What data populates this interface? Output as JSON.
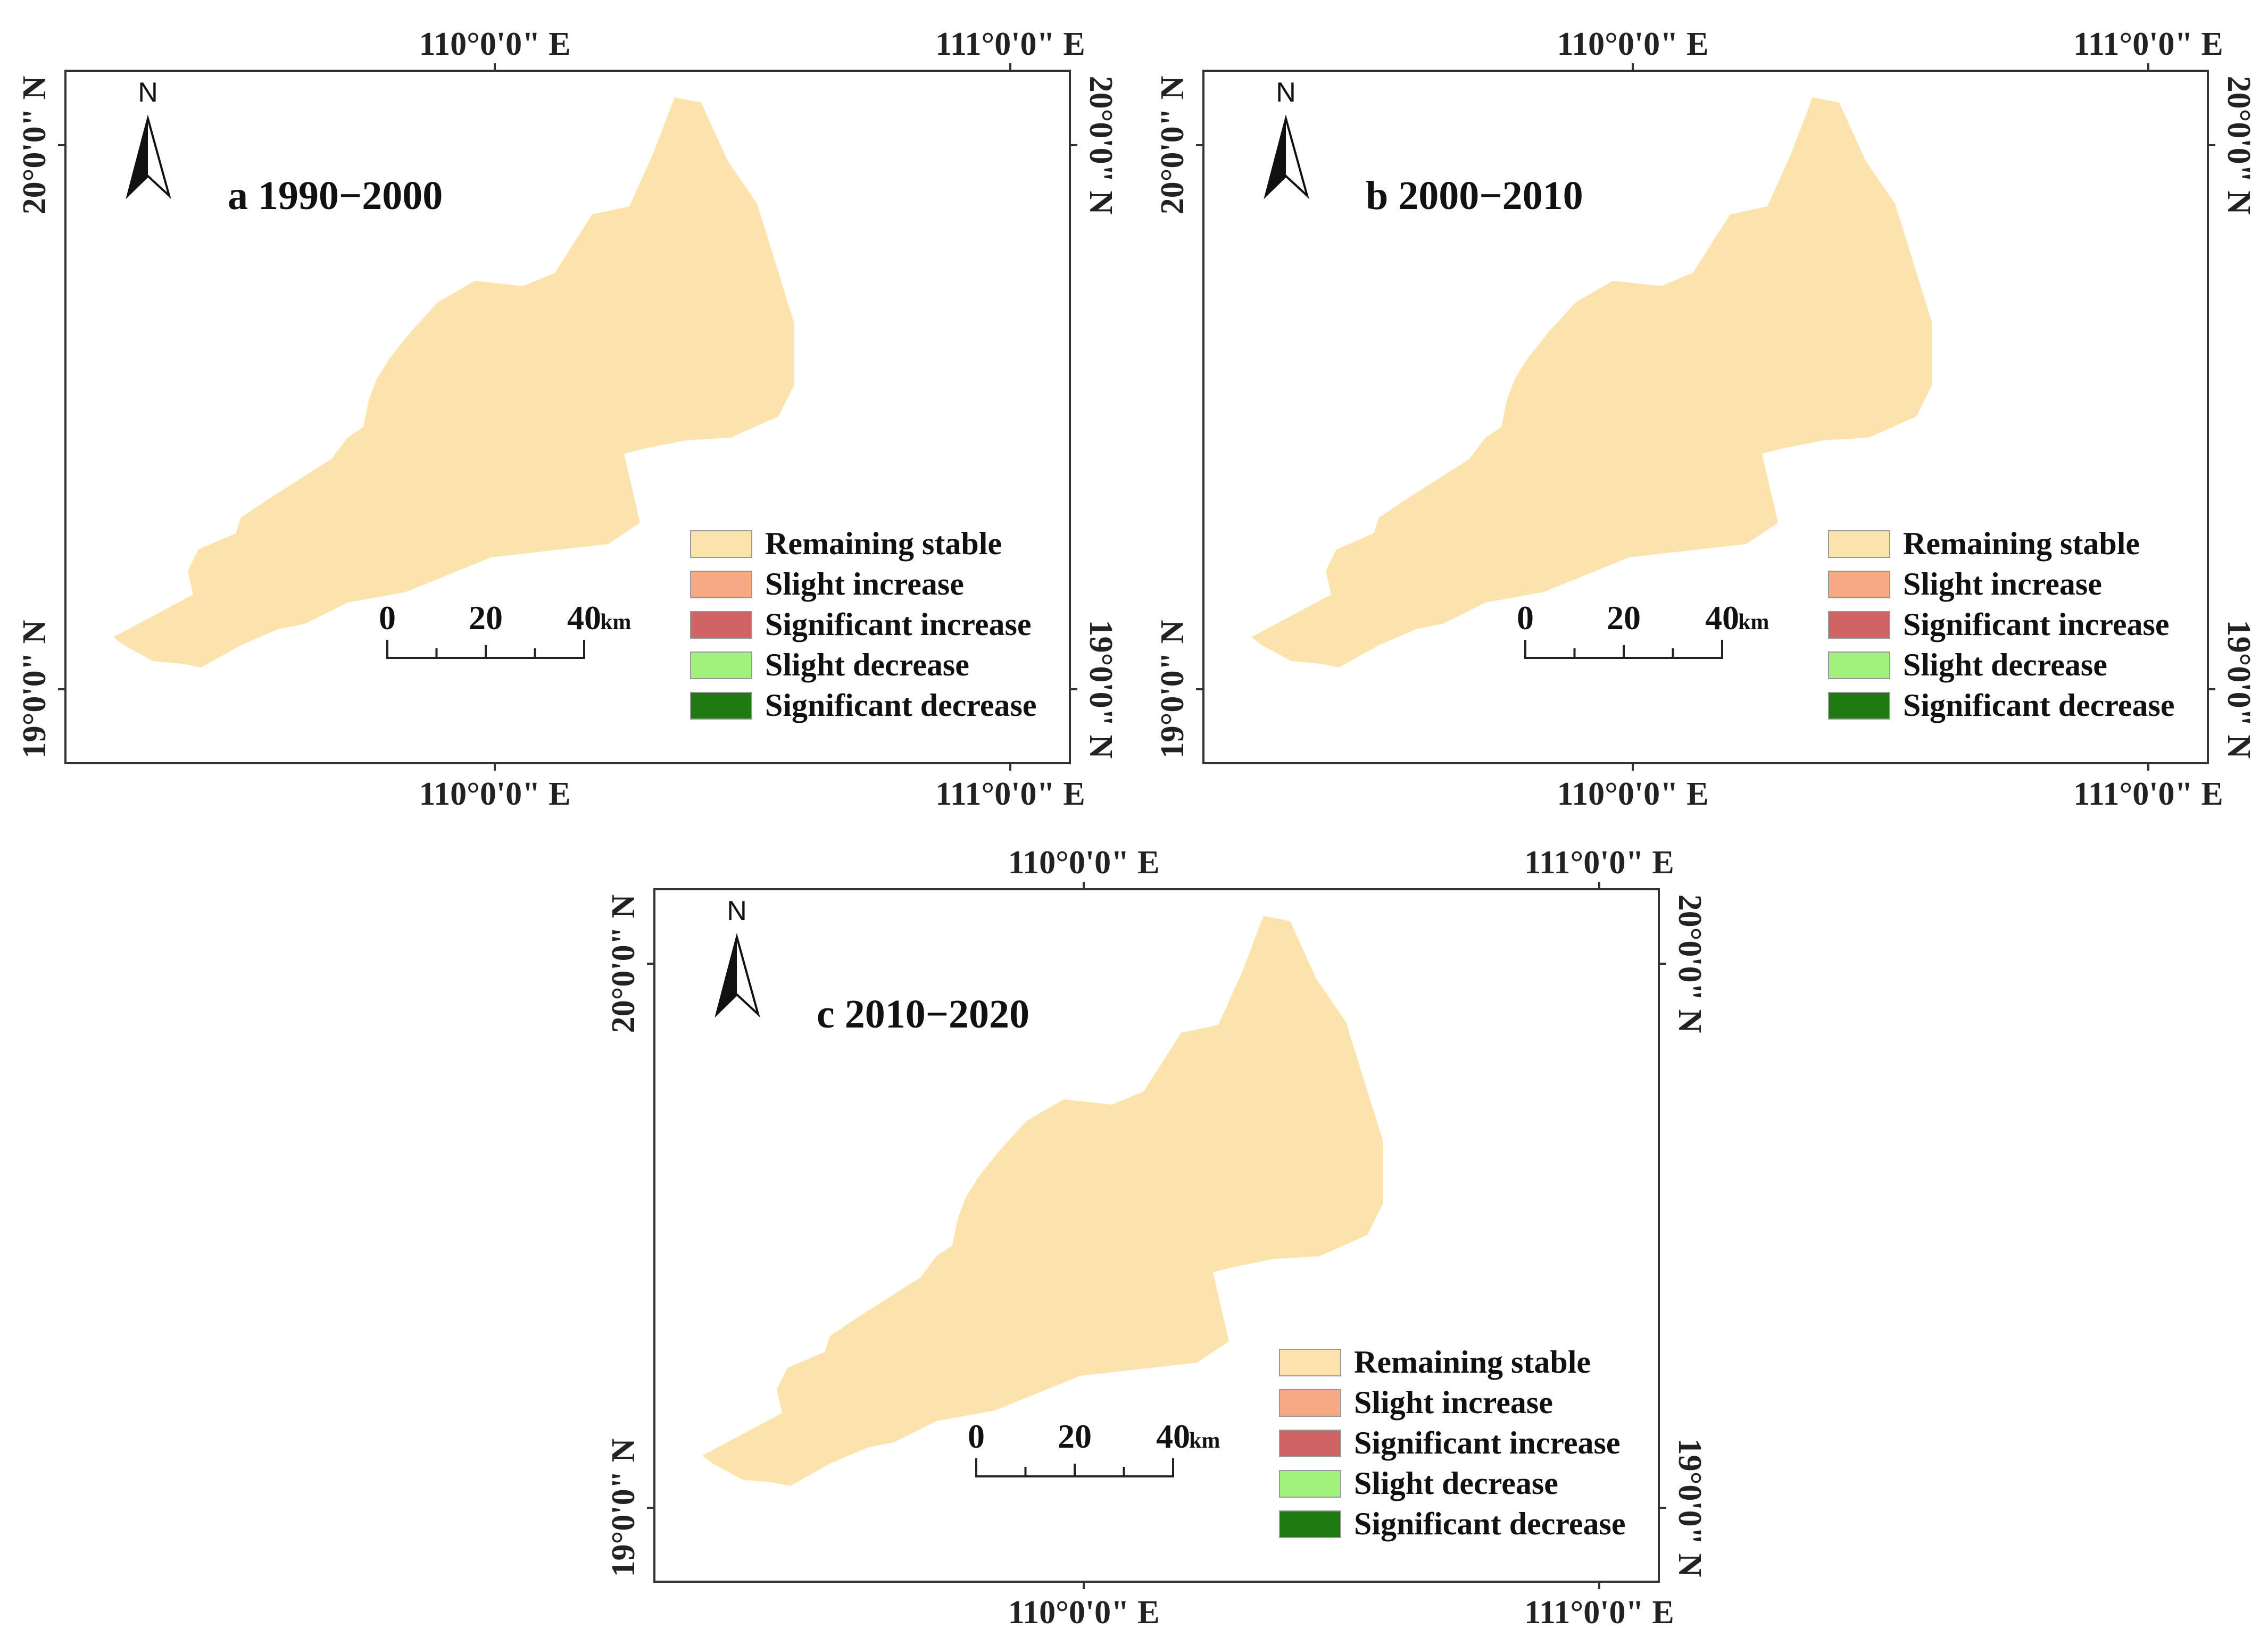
{
  "colors": {
    "remaining_stable": "#FCE3AC",
    "slight_increase": "#F7A884",
    "significant_increase": "#D06464",
    "slight_decrease": "#A0F27D",
    "significant_decrease": "#1F7A12"
  },
  "legend": [
    {
      "key": "remaining_stable",
      "label": "Remaining stable"
    },
    {
      "key": "slight_increase",
      "label": "Slight increase"
    },
    {
      "key": "significant_increase",
      "label": "Significant increase"
    },
    {
      "key": "slight_decrease",
      "label": "Slight decrease"
    },
    {
      "key": "significant_decrease",
      "label": "Significant decrease"
    }
  ],
  "axis_labels": {
    "lon_110": "110°0'0\" E",
    "lon_111": "111°0'0\" E",
    "lat_20": "20°0'0\" N",
    "lat_19": "19°0'0\" N"
  },
  "north_label": "N",
  "scale_bar": {
    "ticks": [
      "0",
      "20",
      "40"
    ],
    "unit": "km"
  },
  "panels": [
    {
      "id": "a",
      "title": "a 1990−2000"
    },
    {
      "id": "b",
      "title": "b 2000−2010"
    },
    {
      "id": "c",
      "title": "c 2010−2020"
    }
  ]
}
